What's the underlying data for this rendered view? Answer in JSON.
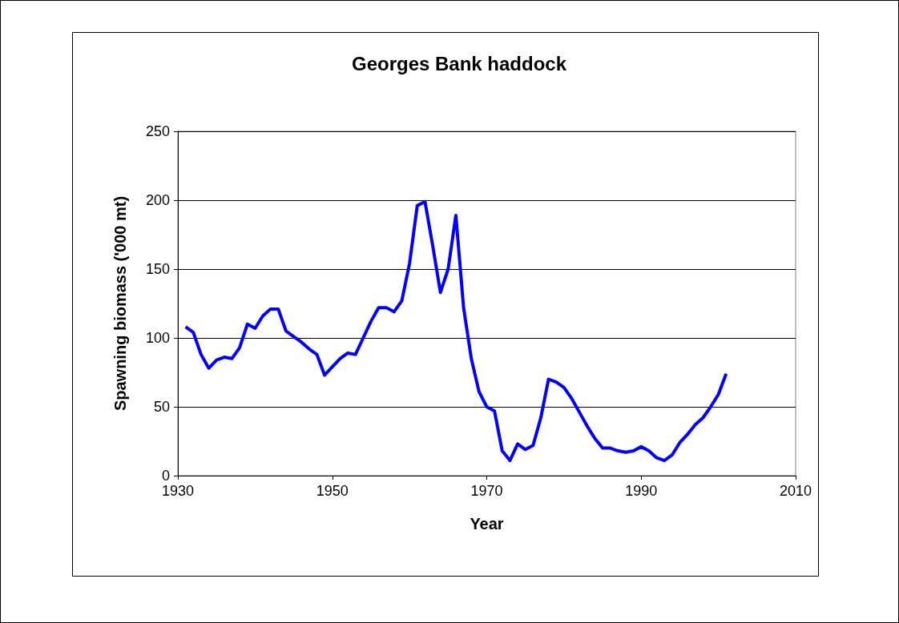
{
  "chart_data": {
    "type": "line",
    "title": "Georges Bank haddock",
    "xlabel": "Year",
    "ylabel": "Spawning biomass ('000 mt)",
    "x": [
      1931,
      1932,
      1933,
      1934,
      1935,
      1936,
      1937,
      1938,
      1939,
      1940,
      1941,
      1942,
      1943,
      1944,
      1945,
      1946,
      1947,
      1948,
      1949,
      1950,
      1951,
      1952,
      1953,
      1954,
      1955,
      1956,
      1957,
      1958,
      1959,
      1960,
      1961,
      1962,
      1963,
      1964,
      1965,
      1966,
      1967,
      1968,
      1969,
      1970,
      1971,
      1972,
      1973,
      1974,
      1975,
      1976,
      1977,
      1978,
      1979,
      1980,
      1981,
      1982,
      1983,
      1984,
      1985,
      1986,
      1987,
      1988,
      1989,
      1990,
      1991,
      1992,
      1993,
      1994,
      1995,
      1996,
      1997,
      1998,
      1999,
      2000,
      2001
    ],
    "series": [
      {
        "color": "#0000ff",
        "values": [
          108,
          104,
          88,
          78,
          84,
          86,
          85,
          93,
          110,
          107,
          116,
          121,
          121,
          105,
          101,
          97,
          92,
          88,
          73,
          79,
          85,
          89,
          88,
          100,
          112,
          122,
          122,
          119,
          127,
          154,
          196,
          199,
          167,
          133,
          150,
          189,
          122,
          85,
          61,
          50,
          47,
          18,
          11,
          23,
          19,
          22,
          42,
          70,
          68,
          64,
          56,
          46,
          36,
          27,
          20,
          20,
          18,
          17,
          18,
          21,
          18,
          13,
          11,
          15,
          24,
          30,
          37,
          42,
          50,
          59,
          74
        ]
      }
    ],
    "xlim": [
      1930,
      2010
    ],
    "xticks": [
      1930,
      1950,
      1970,
      1990,
      2010
    ],
    "ylim": [
      0,
      250
    ],
    "yticks": [
      0,
      50,
      100,
      150,
      200,
      250
    ],
    "grid": "y",
    "marker": "none",
    "line_style": "solid"
  }
}
